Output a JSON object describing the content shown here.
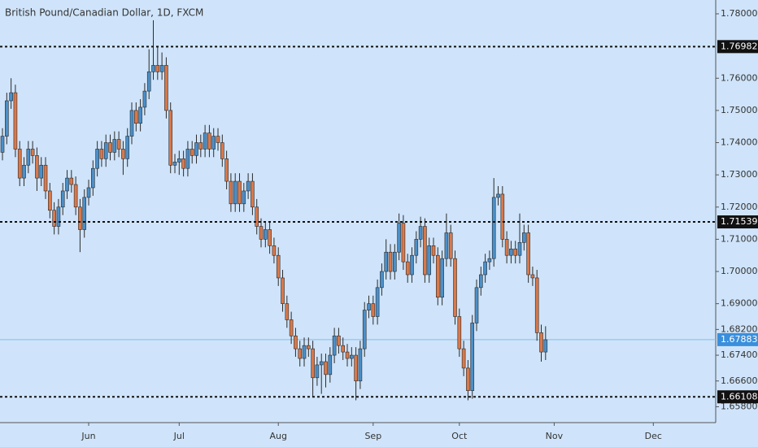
{
  "chart_data": {
    "type": "candlestick",
    "title": "British Pound/Canadian Dollar, 1D, FXCM",
    "up_color": "#4a8fc9",
    "down_color": "#d9784a",
    "wick_color": "#2b2b2b",
    "xlim": [
      -0.57,
      165.47
    ],
    "xticks": [
      {
        "value": 20,
        "label": "Jun"
      },
      {
        "value": 41,
        "label": "Jul"
      },
      {
        "value": 64,
        "label": "Aug"
      },
      {
        "value": 86,
        "label": "Sep"
      },
      {
        "value": 106,
        "label": "Oct"
      },
      {
        "value": 128,
        "label": "Nov"
      },
      {
        "value": 151,
        "label": "Dec"
      }
    ],
    "ylim": [
      1.65307,
      1.78429
    ],
    "yticks": [
      {
        "value": 1.78,
        "label": "1.78000"
      },
      {
        "value": 1.76,
        "label": "1.76000"
      },
      {
        "value": 1.75,
        "label": "1.75000"
      },
      {
        "value": 1.74,
        "label": "1.74000"
      },
      {
        "value": 1.73,
        "label": "1.73000"
      },
      {
        "value": 1.72,
        "label": "1.72000"
      },
      {
        "value": 1.71,
        "label": "1.71000"
      },
      {
        "value": 1.7,
        "label": "1.70000"
      },
      {
        "value": 1.69,
        "label": "1.69000"
      },
      {
        "value": 1.682,
        "label": "1.68200"
      },
      {
        "value": 1.674,
        "label": "1.67400"
      },
      {
        "value": 1.666,
        "label": "1.66600"
      },
      {
        "value": 1.658,
        "label": "1.65800"
      }
    ],
    "levels": [
      {
        "value": 1.76982,
        "label": "1.76982"
      },
      {
        "value": 1.71539,
        "label": "1.71539"
      },
      {
        "value": 1.66108,
        "label": "1.66108"
      }
    ],
    "last_price": {
      "value": 1.67883,
      "label": "1.67883",
      "color": "#3a8fdc"
    },
    "open": [
      1.737,
      1.742,
      1.753,
      1.7555,
      1.738,
      1.729,
      1.733,
      1.738,
      1.736,
      1.729,
      1.733,
      1.725,
      1.719,
      1.714,
      1.72,
      1.725,
      1.729,
      1.727,
      1.72,
      1.713,
      1.723,
      1.726,
      1.732,
      1.738,
      1.735,
      1.74,
      1.737,
      1.741,
      1.738,
      1.735,
      1.742,
      1.75,
      1.746,
      1.751,
      1.756,
      1.762,
      1.764,
      1.762,
      1.764,
      1.75,
      1.733,
      1.734,
      1.735,
      1.732,
      1.738,
      1.736,
      1.74,
      1.738,
      1.743,
      1.738,
      1.742,
      1.74,
      1.735,
      1.728,
      1.721,
      1.728,
      1.721,
      1.725,
      1.728,
      1.72,
      1.714,
      1.71,
      1.713,
      1.708,
      1.705,
      1.698,
      1.69,
      1.685,
      1.68,
      1.676,
      1.673,
      1.677,
      1.676,
      1.667,
      1.671,
      1.672,
      1.668,
      1.674,
      1.68,
      1.677,
      1.675,
      1.673,
      1.674,
      1.666,
      1.676,
      1.688,
      1.69,
      1.686,
      1.695,
      1.7,
      1.706,
      1.7,
      1.706,
      1.715,
      1.703,
      1.699,
      1.705,
      1.71,
      1.714,
      1.699,
      1.708,
      1.705,
      1.692,
      1.704,
      1.712,
      1.704,
      1.686,
      1.676,
      1.67,
      1.663,
      1.684,
      1.695,
      1.699,
      1.703,
      1.704,
      1.723,
      1.724,
      1.71,
      1.705,
      1.707,
      1.705,
      1.709,
      1.712,
      1.699,
      1.698,
      1.681,
      1.675
    ],
    "high": [
      1.7445,
      1.7555,
      1.76,
      1.758,
      1.7405,
      1.7355,
      1.7405,
      1.7405,
      1.7385,
      1.7355,
      1.7355,
      1.7275,
      1.7215,
      1.7225,
      1.7275,
      1.7315,
      1.7315,
      1.7295,
      1.7225,
      1.7255,
      1.7285,
      1.7345,
      1.7405,
      1.7405,
      1.7425,
      1.7425,
      1.7435,
      1.7435,
      1.7405,
      1.7445,
      1.7525,
      1.7525,
      1.7535,
      1.7585,
      1.769,
      1.778,
      1.77,
      1.768,
      1.7665,
      1.7525,
      1.7365,
      1.7375,
      1.7375,
      1.7405,
      1.7405,
      1.7425,
      1.7425,
      1.7455,
      1.7455,
      1.7445,
      1.7445,
      1.7425,
      1.7375,
      1.7305,
      1.7305,
      1.7305,
      1.7275,
      1.7305,
      1.7305,
      1.7225,
      1.7165,
      1.7155,
      1.7155,
      1.7105,
      1.7075,
      1.7005,
      1.6925,
      1.6875,
      1.6825,
      1.6785,
      1.6795,
      1.6795,
      1.6785,
      1.6735,
      1.6745,
      1.6745,
      1.6765,
      1.6825,
      1.6825,
      1.6795,
      1.6775,
      1.6765,
      1.6765,
      1.6785,
      1.6905,
      1.6925,
      1.6925,
      1.6975,
      1.7025,
      1.71,
      1.7085,
      1.7085,
      1.718,
      1.7175,
      1.7055,
      1.7075,
      1.7125,
      1.717,
      1.7165,
      1.7105,
      1.7105,
      1.7075,
      1.7065,
      1.718,
      1.7145,
      1.7065,
      1.6885,
      1.6785,
      1.6725,
      1.6865,
      1.6975,
      1.7015,
      1.7055,
      1.7065,
      1.729,
      1.7265,
      1.7265,
      1.7125,
      1.7095,
      1.7095,
      1.718,
      1.7145,
      1.7145,
      1.7015,
      1.7005,
      1.6835,
      1.683
    ],
    "low": [
      1.7345,
      1.7395,
      1.7505,
      1.7355,
      1.7265,
      1.7265,
      1.7305,
      1.7335,
      1.725,
      1.7265,
      1.7225,
      1.7165,
      1.7115,
      1.7115,
      1.7175,
      1.7225,
      1.7245,
      1.7175,
      1.706,
      1.7105,
      1.7205,
      1.7235,
      1.7295,
      1.7325,
      1.7325,
      1.7345,
      1.7345,
      1.7355,
      1.73,
      1.7325,
      1.7395,
      1.7435,
      1.7435,
      1.7485,
      1.7535,
      1.7595,
      1.7595,
      1.7595,
      1.7475,
      1.7305,
      1.7305,
      1.73,
      1.7295,
      1.7295,
      1.7335,
      1.7335,
      1.7355,
      1.7355,
      1.7355,
      1.7355,
      1.7375,
      1.7325,
      1.7255,
      1.7185,
      1.7185,
      1.7185,
      1.7185,
      1.7225,
      1.7175,
      1.7115,
      1.7075,
      1.7075,
      1.7055,
      1.7025,
      1.6955,
      1.6875,
      1.6825,
      1.6775,
      1.6735,
      1.6705,
      1.6705,
      1.6735,
      1.661,
      1.6645,
      1.662,
      1.664,
      1.6655,
      1.6715,
      1.6745,
      1.6725,
      1.6705,
      1.6705,
      1.66,
      1.6635,
      1.6735,
      1.6855,
      1.6835,
      1.6835,
      1.6925,
      1.6975,
      1.6975,
      1.6975,
      1.7035,
      1.7005,
      1.6965,
      1.6965,
      1.7025,
      1.7075,
      1.6965,
      1.6965,
      1.7025,
      1.6895,
      1.6895,
      1.7015,
      1.7015,
      1.6835,
      1.6735,
      1.6675,
      1.66,
      1.6605,
      1.6815,
      1.6925,
      1.6965,
      1.7005,
      1.7015,
      1.7205,
      1.7075,
      1.7025,
      1.7025,
      1.7025,
      1.7025,
      1.7065,
      1.6965,
      1.6955,
      1.6785,
      1.672,
      1.6725
    ],
    "close": [
      1.742,
      1.753,
      1.7555,
      1.738,
      1.729,
      1.733,
      1.738,
      1.736,
      1.729,
      1.733,
      1.725,
      1.719,
      1.714,
      1.72,
      1.725,
      1.729,
      1.727,
      1.72,
      1.713,
      1.723,
      1.726,
      1.732,
      1.738,
      1.735,
      1.74,
      1.737,
      1.741,
      1.738,
      1.735,
      1.742,
      1.75,
      1.746,
      1.751,
      1.756,
      1.762,
      1.764,
      1.762,
      1.764,
      1.75,
      1.733,
      1.734,
      1.735,
      1.732,
      1.738,
      1.736,
      1.74,
      1.738,
      1.743,
      1.738,
      1.742,
      1.74,
      1.735,
      1.728,
      1.721,
      1.728,
      1.721,
      1.725,
      1.728,
      1.72,
      1.714,
      1.71,
      1.713,
      1.708,
      1.705,
      1.698,
      1.69,
      1.685,
      1.68,
      1.676,
      1.673,
      1.677,
      1.676,
      1.667,
      1.671,
      1.672,
      1.668,
      1.674,
      1.68,
      1.677,
      1.675,
      1.673,
      1.674,
      1.666,
      1.676,
      1.688,
      1.69,
      1.686,
      1.695,
      1.7,
      1.706,
      1.7,
      1.706,
      1.715,
      1.703,
      1.699,
      1.705,
      1.71,
      1.714,
      1.699,
      1.708,
      1.705,
      1.692,
      1.704,
      1.712,
      1.704,
      1.686,
      1.676,
      1.67,
      1.663,
      1.684,
      1.695,
      1.699,
      1.703,
      1.704,
      1.723,
      1.724,
      1.71,
      1.705,
      1.707,
      1.705,
      1.709,
      1.712,
      1.699,
      1.698,
      1.681,
      1.675,
      1.6788
    ]
  }
}
